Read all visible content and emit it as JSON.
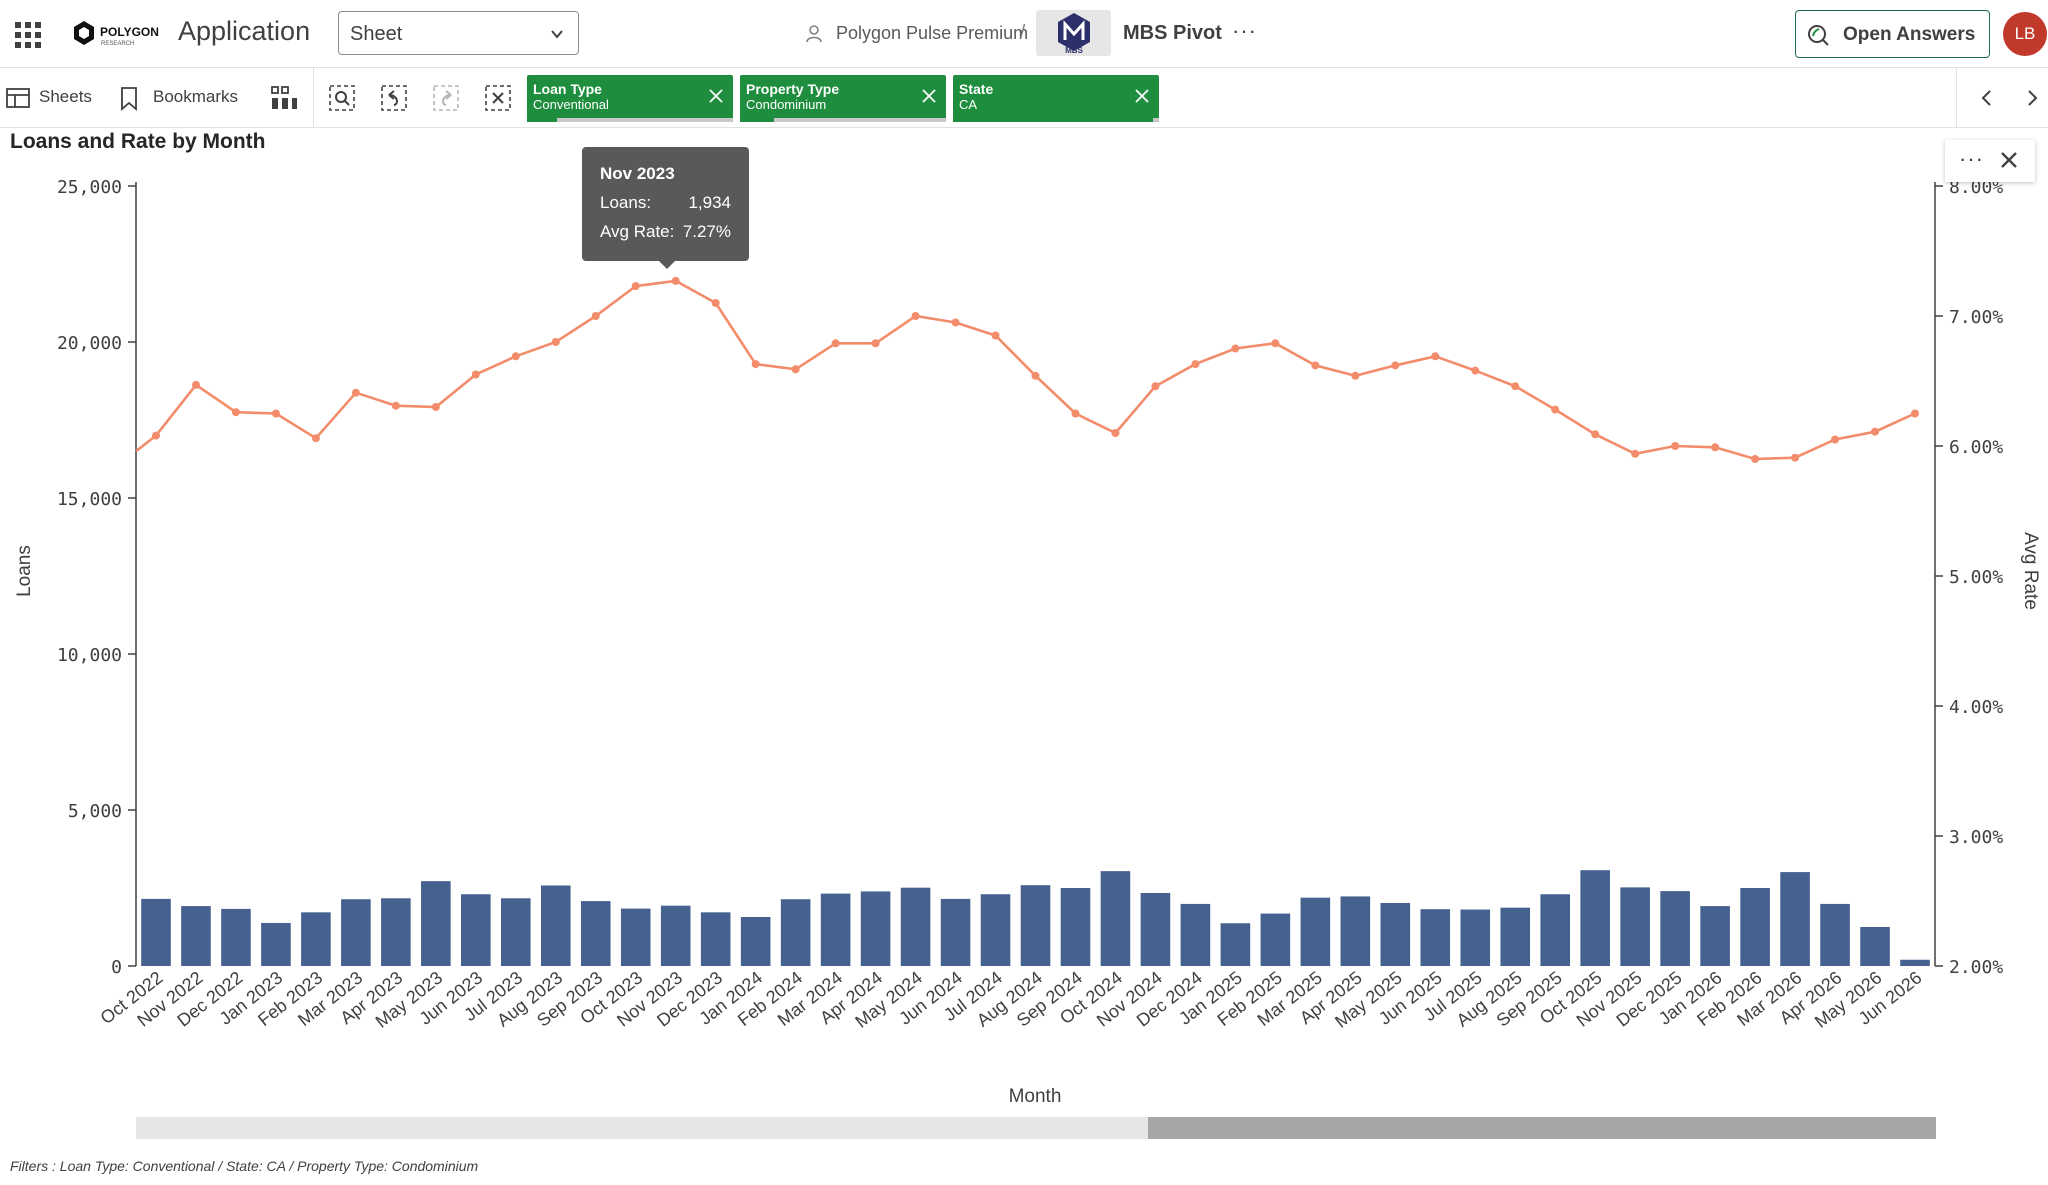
{
  "header": {
    "app_label": "Application",
    "sheet_selector": "Sheet",
    "space_name": "Polygon Pulse Premium",
    "crumb_separator": "/",
    "app_name": "MBS Pivot",
    "more": "···",
    "open_answers": "Open Answers",
    "avatar_initials": "LB",
    "logo_text": "POLYGON",
    "logo_sub": "RESEARCH",
    "thumb_text": "MBS"
  },
  "toolbar": {
    "sheets": "Sheets",
    "bookmarks": "Bookmarks",
    "filters": [
      {
        "title": "Loan Type",
        "value": "Conventional"
      },
      {
        "title": "Property Type",
        "value": "Condominium"
      },
      {
        "title": "State",
        "value": "CA"
      }
    ]
  },
  "chart": {
    "title": "Loans and Rate by Month",
    "menu_dots": "···",
    "tooltip": {
      "title": "Nov 2023",
      "loans_label": "Loans:",
      "loans_value": "1,934",
      "rate_label": "Avg Rate:",
      "rate_value": "7.27%"
    },
    "filters_note": "Filters : Loan Type: Conventional / State: CA / Property Type: Condominium"
  },
  "colors": {
    "bar": "#44618f",
    "line": "#f28c6b",
    "chip": "#1e8e3e",
    "avatar": "#c0392b"
  },
  "chart_data": {
    "type": "bar",
    "title": "Loans and Rate by Month",
    "xlabel": "Month",
    "ylabel": "Loans",
    "y2label": "Avg Rate",
    "ylim": [
      0,
      25000
    ],
    "y2lim": [
      2,
      8
    ],
    "yticks": [
      "0",
      "5,000",
      "10,000",
      "15,000",
      "20,000",
      "25,000"
    ],
    "y2ticks": [
      "2.00%",
      "3.00%",
      "4.00%",
      "5.00%",
      "6.00%",
      "7.00%",
      "8.00%"
    ],
    "categories": [
      "Oct 2022",
      "Nov 2022",
      "Dec 2022",
      "Jan 2023",
      "Feb 2023",
      "Mar 2023",
      "Apr 2023",
      "May 2023",
      "Jun 2023",
      "Jul 2023",
      "Aug 2023",
      "Sep 2023",
      "Oct 2023",
      "Nov 2023",
      "Dec 2023",
      "Jan 2024",
      "Feb 2024",
      "Mar 2024",
      "Apr 2024",
      "May 2024",
      "Jun 2024",
      "Jul 2024",
      "Aug 2024",
      "Sep 2024",
      "Oct 2024",
      "Nov 2024",
      "Dec 2024",
      "Jan 2025",
      "Feb 2025",
      "Mar 2025",
      "Apr 2025",
      "May 2025",
      "Jun 2025",
      "Jul 2025",
      "Aug 2025",
      "Sep 2025",
      "Oct 2025",
      "Nov 2025",
      "Dec 2025",
      "Jan 2026",
      "Feb 2026",
      "Mar 2026",
      "Apr 2026",
      "May 2026",
      "Jun 2026"
    ],
    "series": [
      {
        "name": "Loans",
        "type": "bar",
        "axis": "left",
        "values": [
          2150,
          1920,
          1830,
          1380,
          1720,
          2140,
          2170,
          2720,
          2300,
          2170,
          2580,
          2080,
          1840,
          1934,
          1720,
          1570,
          2140,
          2320,
          2390,
          2510,
          2150,
          2300,
          2590,
          2500,
          3040,
          2340,
          1990,
          1370,
          1680,
          2190,
          2230,
          2020,
          1820,
          1810,
          1870,
          2300,
          3070,
          2520,
          2400,
          1920,
          2500,
          3010,
          1990,
          1250,
          200
        ]
      },
      {
        "name": "Avg Rate",
        "type": "line",
        "axis": "right",
        "values": [
          6.08,
          6.47,
          6.26,
          6.25,
          6.06,
          6.41,
          6.31,
          6.3,
          6.55,
          6.69,
          6.8,
          7.0,
          7.23,
          7.27,
          7.1,
          6.63,
          6.59,
          6.79,
          6.79,
          7.0,
          6.95,
          6.85,
          6.54,
          6.25,
          6.1,
          6.46,
          6.63,
          6.75,
          6.79,
          6.62,
          6.54,
          6.62,
          6.69,
          6.58,
          6.46,
          6.28,
          6.09,
          5.94,
          6.0,
          5.99,
          5.9,
          5.91,
          6.05,
          6.11,
          6.25
        ]
      }
    ],
    "grid": false,
    "legend": "none"
  }
}
